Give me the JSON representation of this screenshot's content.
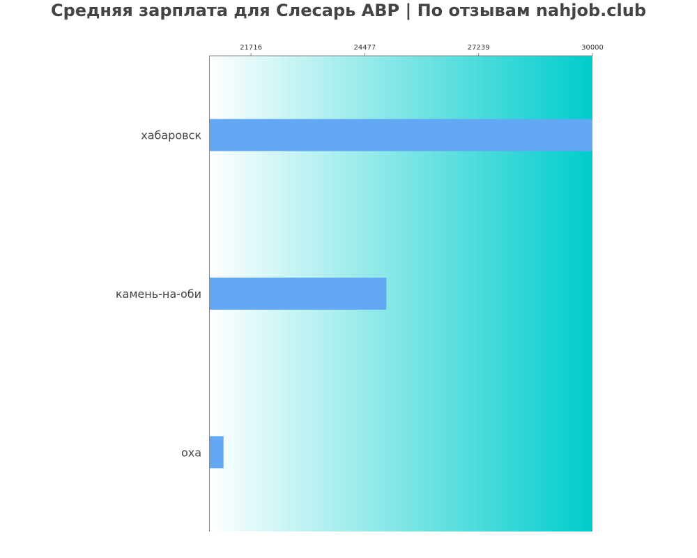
{
  "chart_data": {
    "type": "bar",
    "orientation": "horizontal",
    "title": "Средняя зарплата для Слесарь АВР | По отзывам nahjob.club",
    "categories": [
      "хабаровск",
      "камень-на-оби",
      "оха"
    ],
    "values": [
      30000,
      25000,
      21050
    ],
    "xticks": [
      "21716",
      "24477",
      "27239",
      "30000"
    ],
    "xtick_values": [
      21716,
      24477,
      27239,
      30000
    ],
    "xlim": [
      20700,
      30000
    ],
    "xaxis_position": "top",
    "grid": false,
    "legend": "none",
    "colors": {
      "bar": "#62a8f4",
      "gradient_start": "#ffffff",
      "gradient_end": "#00cccc",
      "axis": "#888888",
      "title": "#444444",
      "label": "#444444"
    }
  }
}
